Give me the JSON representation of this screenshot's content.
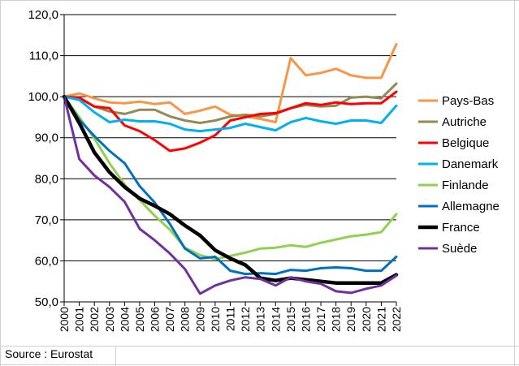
{
  "chart_data": {
    "type": "line",
    "title": "",
    "xlabel": "",
    "ylabel": "",
    "x": [
      2000,
      2001,
      2002,
      2003,
      2004,
      2005,
      2006,
      2007,
      2008,
      2009,
      2010,
      2011,
      2012,
      2013,
      2014,
      2015,
      2016,
      2017,
      2018,
      2019,
      2020,
      2021,
      2022
    ],
    "ylim": [
      50,
      120
    ],
    "yticks": [
      "50,0",
      "60,0",
      "70,0",
      "80,0",
      "90,0",
      "100,0",
      "110,0",
      "120,0"
    ],
    "grid": "horizontal",
    "legend_position": "right",
    "series": [
      {
        "name": "Pays-Bas",
        "color": "#F79646",
        "width": 3,
        "values": [
          100,
          100.8,
          99.6,
          98.6,
          98.4,
          98.8,
          98.2,
          98.6,
          95.8,
          96.6,
          97.6,
          95.6,
          95.2,
          94.6,
          93.8,
          109.4,
          105.2,
          105.8,
          106.8,
          105.2,
          104.6,
          104.6,
          112.8
        ]
      },
      {
        "name": "Autriche",
        "color": "#948A54",
        "width": 3,
        "values": [
          100,
          99.6,
          97.6,
          96.4,
          95.8,
          96.8,
          96.8,
          95.2,
          94.2,
          93.6,
          94.2,
          95.2,
          95.6,
          95.2,
          95.8,
          97.2,
          98.0,
          97.6,
          97.8,
          99.8,
          100.0,
          99.6,
          103.2
        ]
      },
      {
        "name": "Belgique",
        "color": "#FF0000",
        "width": 3,
        "values": [
          100,
          99.8,
          97.6,
          97.2,
          93.0,
          91.6,
          89.4,
          86.8,
          87.4,
          88.8,
          90.6,
          94.2,
          95.0,
          95.8,
          96.0,
          97.2,
          98.4,
          98.0,
          98.6,
          98.2,
          98.4,
          98.4,
          101.2
        ]
      },
      {
        "name": "Danemark",
        "color": "#00B0F0",
        "width": 3,
        "values": [
          100,
          99.2,
          96.2,
          93.8,
          94.4,
          94.0,
          94.0,
          93.4,
          92.0,
          91.6,
          92.0,
          92.4,
          93.4,
          92.6,
          91.8,
          93.8,
          94.8,
          94.0,
          93.4,
          94.2,
          94.2,
          93.6,
          97.8
        ]
      },
      {
        "name": "Finlande",
        "color": "#92D050",
        "width": 3,
        "values": [
          100,
          95.0,
          89.8,
          83.8,
          78.6,
          74.8,
          71.0,
          67.6,
          63.2,
          61.4,
          60.4,
          61.2,
          62.0,
          63.0,
          63.2,
          63.8,
          63.4,
          64.4,
          65.2,
          66.0,
          66.4,
          67.0,
          71.4
        ]
      },
      {
        "name": "Allemagne",
        "color": "#0070C0",
        "width": 3,
        "values": [
          100,
          94.4,
          90.4,
          86.8,
          83.8,
          78.2,
          74.2,
          69.0,
          63.0,
          60.6,
          61.0,
          57.6,
          56.8,
          57.0,
          56.8,
          57.8,
          57.6,
          58.2,
          58.4,
          58.2,
          57.6,
          57.6,
          61.0
        ]
      },
      {
        "name": "France",
        "color": "#000000",
        "width": 4.5,
        "values": [
          100,
          93.6,
          86.4,
          81.6,
          78.0,
          75.2,
          73.4,
          71.4,
          68.6,
          66.2,
          62.6,
          60.6,
          59.0,
          55.8,
          55.2,
          55.8,
          55.4,
          55.0,
          54.6,
          54.6,
          54.6,
          54.6,
          56.6
        ]
      },
      {
        "name": "Suède",
        "color": "#7030A0",
        "width": 3,
        "values": [
          100,
          84.8,
          80.8,
          78.0,
          74.4,
          67.8,
          65.0,
          61.8,
          58.0,
          52.0,
          54.0,
          55.2,
          56.0,
          55.6,
          54.0,
          56.0,
          55.0,
          54.4,
          52.6,
          52.2,
          53.2,
          54.0,
          56.4
        ]
      }
    ]
  },
  "source_text": "Source : Eurostat"
}
